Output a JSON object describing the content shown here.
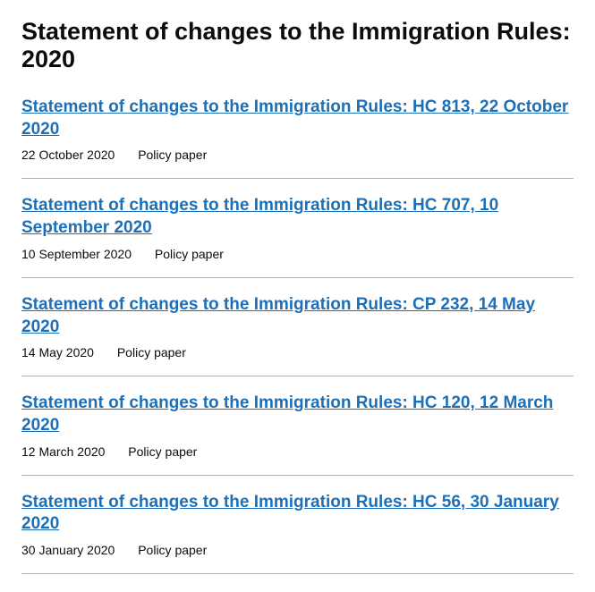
{
  "page": {
    "title": "Statement of changes to the Immigration Rules: 2020"
  },
  "documents": [
    {
      "title": "Statement of changes to the Immigration Rules: HC 813, 22 October 2020",
      "date": "22 October 2020",
      "type": "Policy paper"
    },
    {
      "title": "Statement of changes to the Immigration Rules: HC 707, 10 September 2020",
      "date": "10 September 2020",
      "type": "Policy paper"
    },
    {
      "title": "Statement of changes to the Immigration Rules: CP 232, 14 May 2020",
      "date": "14 May 2020",
      "type": "Policy paper"
    },
    {
      "title": "Statement of changes to the Immigration Rules: HC 120, 12 March 2020",
      "date": "12 March 2020",
      "type": "Policy paper"
    },
    {
      "title": "Statement of changes to the Immigration Rules: HC 56, 30 January 2020",
      "date": "30 January 2020",
      "type": "Policy paper"
    }
  ],
  "colors": {
    "text": "#0b0c0c",
    "link": "#1d70b8",
    "border": "#b1b4b6",
    "background": "#ffffff"
  }
}
